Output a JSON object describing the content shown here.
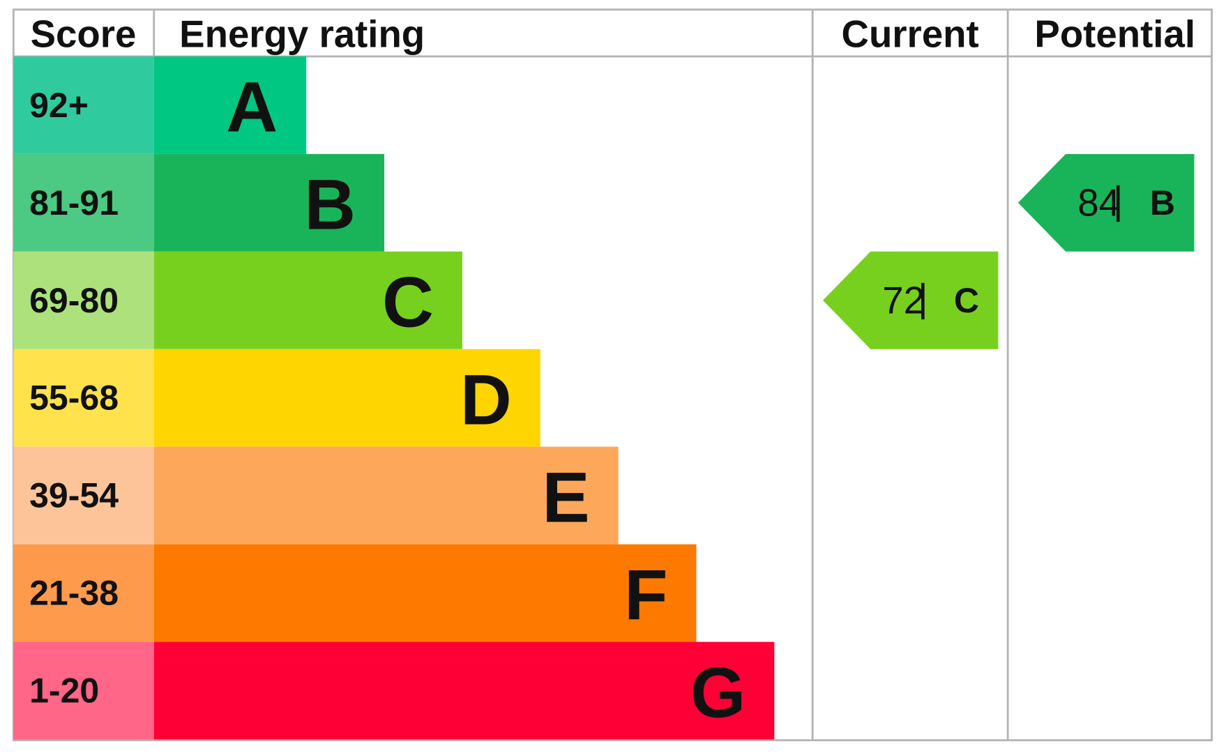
{
  "header": {
    "score": "Score",
    "energy_rating": "Energy rating",
    "current": "Current",
    "potential": "Potential"
  },
  "bands": [
    {
      "score": "92+",
      "rating": "A",
      "color": "#00c781",
      "score_color": "#2fcb9f"
    },
    {
      "score": "81-91",
      "rating": "B",
      "color": "#19b459",
      "score_color": "#4cc982"
    },
    {
      "score": "69-80",
      "rating": "C",
      "color": "#78d01e",
      "score_color": "#ade17c"
    },
    {
      "score": "55-68",
      "rating": "D",
      "color": "#ffd500",
      "score_color": "#ffe24c"
    },
    {
      "score": "39-54",
      "rating": "E",
      "color": "#fda75b",
      "score_color": "#fec499"
    },
    {
      "score": "21-38",
      "rating": "F",
      "color": "#fd7900",
      "score_color": "#fd9a4c"
    },
    {
      "score": "1-20",
      "rating": "G",
      "color": "#ff0036",
      "score_color": "#ff6688"
    }
  ],
  "current": {
    "score": 72,
    "rating": "C"
  },
  "potential": {
    "score": 84,
    "rating": "B"
  }
}
